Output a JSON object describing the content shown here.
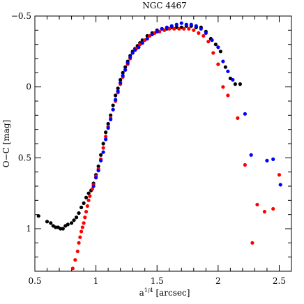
{
  "chart_data": {
    "type": "scatter",
    "title": "NGC 4467",
    "xlabel": "a^{1/4} [arcsec]",
    "xlabel_main": "a",
    "xlabel_sup": "1/4",
    "xlabel_unit": " [arcsec]",
    "ylabel": "O−C [mag]",
    "xlim": [
      0.5,
      2.6
    ],
    "ylim": [
      1.3,
      -0.5
    ],
    "y_inverted": true,
    "x_ticks": [
      0.5,
      1,
      1.5,
      2,
      2.5
    ],
    "x_tick_labels": [
      "0.5",
      "1",
      "1.5",
      "2",
      "2.5"
    ],
    "y_ticks": [
      -0.5,
      0,
      0.5,
      1
    ],
    "y_tick_labels": [
      "−0.5",
      "0",
      "0.5",
      "1"
    ],
    "grid": false,
    "legend": "none",
    "series": [
      {
        "color": "#000000",
        "points": [
          [
            0.53,
            0.91
          ],
          [
            0.6,
            0.95
          ],
          [
            0.63,
            0.96
          ],
          [
            0.65,
            0.98
          ],
          [
            0.67,
            0.99
          ],
          [
            0.69,
            0.99
          ],
          [
            0.71,
            1.0
          ],
          [
            0.73,
            1.0
          ],
          [
            0.75,
            0.98
          ],
          [
            0.77,
            0.97
          ],
          [
            0.8,
            0.96
          ],
          [
            0.82,
            0.94
          ],
          [
            0.84,
            0.92
          ],
          [
            0.86,
            0.89
          ],
          [
            0.88,
            0.85
          ],
          [
            0.9,
            0.82
          ],
          [
            0.92,
            0.78
          ],
          [
            0.94,
            0.75
          ],
          [
            0.96,
            0.73
          ],
          [
            0.98,
            0.68
          ],
          [
            1.0,
            0.62
          ],
          [
            1.02,
            0.56
          ],
          [
            1.04,
            0.48
          ],
          [
            1.06,
            0.4
          ],
          [
            1.08,
            0.32
          ],
          [
            1.1,
            0.26
          ],
          [
            1.12,
            0.2
          ],
          [
            1.14,
            0.13
          ],
          [
            1.16,
            0.06
          ],
          [
            1.18,
            0.01
          ],
          [
            1.2,
            -0.05
          ],
          [
            1.22,
            -0.1
          ],
          [
            1.24,
            -0.14
          ],
          [
            1.26,
            -0.18
          ],
          [
            1.28,
            -0.22
          ],
          [
            1.3,
            -0.25
          ],
          [
            1.32,
            -0.27
          ],
          [
            1.34,
            -0.29
          ],
          [
            1.36,
            -0.31
          ],
          [
            1.38,
            -0.33
          ],
          [
            1.42,
            -0.36
          ],
          [
            1.46,
            -0.38
          ],
          [
            1.5,
            -0.4
          ],
          [
            1.54,
            -0.41
          ],
          [
            1.58,
            -0.41
          ],
          [
            1.62,
            -0.42
          ],
          [
            1.66,
            -0.42
          ],
          [
            1.7,
            -0.42
          ],
          [
            1.74,
            -0.43
          ],
          [
            1.78,
            -0.43
          ],
          [
            1.82,
            -0.42
          ],
          [
            1.86,
            -0.42
          ],
          [
            1.9,
            -0.39
          ],
          [
            1.94,
            -0.34
          ],
          [
            1.98,
            -0.3
          ],
          [
            2.02,
            -0.25
          ],
          [
            2.06,
            -0.14
          ],
          [
            2.1,
            -0.06
          ],
          [
            2.14,
            -0.02
          ],
          [
            2.18,
            -0.02
          ]
        ]
      },
      {
        "color": "#ff0000",
        "points": [
          [
            0.81,
            1.28
          ],
          [
            0.83,
            1.22
          ],
          [
            0.85,
            1.16
          ],
          [
            0.86,
            1.1
          ],
          [
            0.87,
            1.06
          ],
          [
            0.88,
            1.02
          ],
          [
            0.89,
            0.99
          ],
          [
            0.9,
            0.96
          ],
          [
            0.91,
            0.92
          ],
          [
            0.92,
            0.88
          ],
          [
            0.93,
            0.84
          ],
          [
            0.94,
            0.8
          ],
          [
            0.95,
            0.77
          ],
          [
            0.97,
            0.72
          ],
          [
            0.98,
            0.69
          ],
          [
            1.0,
            0.63
          ],
          [
            1.02,
            0.58
          ],
          [
            1.04,
            0.51
          ],
          [
            1.06,
            0.43
          ],
          [
            1.08,
            0.35
          ],
          [
            1.1,
            0.28
          ],
          [
            1.12,
            0.22
          ],
          [
            1.14,
            0.16
          ],
          [
            1.16,
            0.1
          ],
          [
            1.18,
            0.04
          ],
          [
            1.2,
            -0.02
          ],
          [
            1.22,
            -0.07
          ],
          [
            1.24,
            -0.12
          ],
          [
            1.26,
            -0.16
          ],
          [
            1.28,
            -0.2
          ],
          [
            1.3,
            -0.24
          ],
          [
            1.33,
            -0.27
          ],
          [
            1.36,
            -0.3
          ],
          [
            1.4,
            -0.33
          ],
          [
            1.44,
            -0.36
          ],
          [
            1.48,
            -0.38
          ],
          [
            1.52,
            -0.39
          ],
          [
            1.56,
            -0.4
          ],
          [
            1.6,
            -0.41
          ],
          [
            1.64,
            -0.41
          ],
          [
            1.68,
            -0.41
          ],
          [
            1.72,
            -0.41
          ],
          [
            1.76,
            -0.41
          ],
          [
            1.8,
            -0.4
          ],
          [
            1.84,
            -0.38
          ],
          [
            1.88,
            -0.36
          ],
          [
            1.92,
            -0.32
          ],
          [
            1.96,
            -0.24
          ],
          [
            2.0,
            -0.16
          ],
          [
            2.04,
            0.0
          ],
          [
            2.08,
            0.06
          ],
          [
            2.16,
            0.22
          ],
          [
            2.22,
            0.55
          ],
          [
            2.28,
            1.1
          ],
          [
            2.32,
            0.83
          ],
          [
            2.38,
            0.88
          ],
          [
            2.45,
            0.86
          ],
          [
            2.5,
            0.62
          ]
        ]
      },
      {
        "color": "#0000ff",
        "points": [
          [
            0.98,
            0.7
          ],
          [
            1.0,
            0.64
          ],
          [
            1.02,
            0.59
          ],
          [
            1.04,
            0.52
          ],
          [
            1.06,
            0.46
          ],
          [
            1.08,
            0.37
          ],
          [
            1.1,
            0.29
          ],
          [
            1.12,
            0.23
          ],
          [
            1.14,
            0.16
          ],
          [
            1.16,
            0.09
          ],
          [
            1.18,
            0.03
          ],
          [
            1.2,
            -0.03
          ],
          [
            1.22,
            -0.08
          ],
          [
            1.24,
            -0.12
          ],
          [
            1.26,
            -0.17
          ],
          [
            1.28,
            -0.21
          ],
          [
            1.3,
            -0.24
          ],
          [
            1.32,
            -0.26
          ],
          [
            1.35,
            -0.28
          ],
          [
            1.38,
            -0.31
          ],
          [
            1.42,
            -0.34
          ],
          [
            1.46,
            -0.37
          ],
          [
            1.5,
            -0.39
          ],
          [
            1.54,
            -0.41
          ],
          [
            1.58,
            -0.42
          ],
          [
            1.62,
            -0.43
          ],
          [
            1.66,
            -0.44
          ],
          [
            1.7,
            -0.45
          ],
          [
            1.74,
            -0.44
          ],
          [
            1.78,
            -0.44
          ],
          [
            1.82,
            -0.43
          ],
          [
            1.86,
            -0.41
          ],
          [
            1.9,
            -0.38
          ],
          [
            1.95,
            -0.33
          ],
          [
            2.0,
            -0.28
          ],
          [
            2.04,
            -0.18
          ],
          [
            2.08,
            -0.11
          ],
          [
            2.12,
            -0.05
          ],
          [
            2.22,
            0.19
          ],
          [
            2.27,
            0.48
          ],
          [
            2.4,
            0.52
          ],
          [
            2.45,
            0.51
          ],
          [
            2.51,
            0.69
          ]
        ]
      }
    ]
  }
}
